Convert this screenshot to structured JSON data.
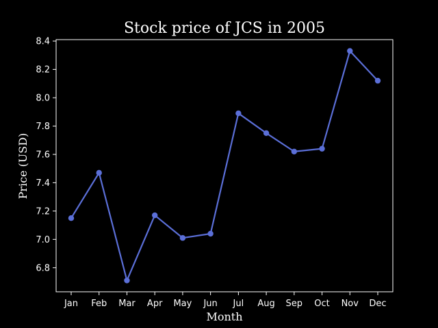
{
  "chart_data": {
    "type": "line",
    "title": "Stock price of JCS in 2005",
    "xlabel": "Month",
    "ylabel": "Price (USD)",
    "categories": [
      "Jan",
      "Feb",
      "Mar",
      "Apr",
      "May",
      "Jun",
      "Jul",
      "Aug",
      "Sep",
      "Oct",
      "Nov",
      "Dec"
    ],
    "series": [
      {
        "values": [
          7.15,
          7.47,
          6.71,
          7.17,
          7.01,
          7.04,
          7.89,
          7.75,
          7.62,
          7.64,
          8.33,
          8.12
        ]
      }
    ],
    "ylim": [
      6.63,
      8.41
    ],
    "yticks": [
      "6.8",
      "7.0",
      "7.2",
      "7.4",
      "7.6",
      "7.8",
      "8.0",
      "8.2",
      "8.4"
    ],
    "grid": false,
    "legend": "none",
    "colors": {
      "background": "#000000",
      "axes": "#ffffff",
      "text": "#ffffff",
      "line": "#5b6fd8"
    }
  }
}
